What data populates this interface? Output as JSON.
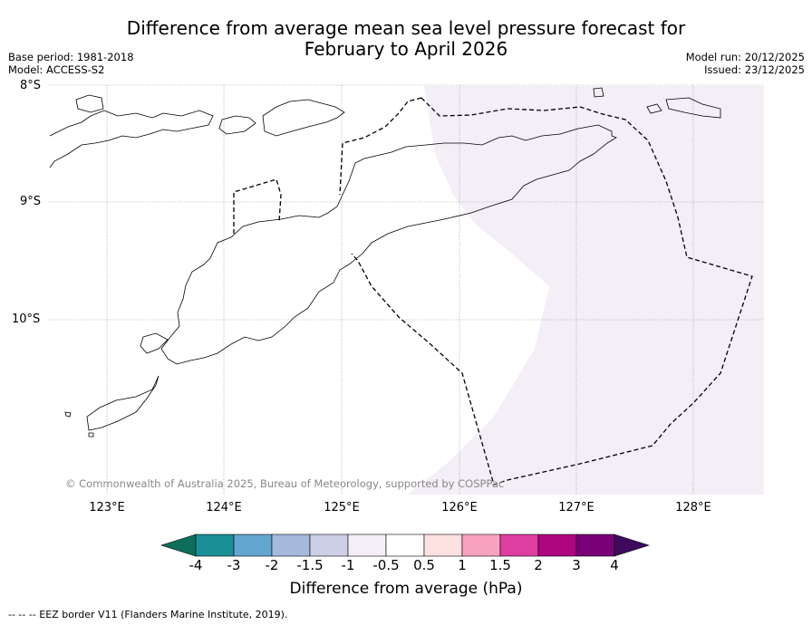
{
  "title_line1": "Difference from average mean sea level pressure forecast for",
  "title_line2": "February to April 2026",
  "base_period": "Base period: 1981-2018",
  "model": "Model: ACCESS-S2",
  "model_run": "Model run: 20/12/2025",
  "issued": "Issued: 23/12/2025",
  "latitudes": [
    "8°S",
    "9°S",
    "10°S"
  ],
  "longitudes": [
    "123°E",
    "124°E",
    "125°E",
    "126°E",
    "127°E",
    "128°E"
  ],
  "copyright": "© Commonwealth of Australia 2025, Bureau of Meteorology, supported by COSPPac",
  "colorbar": {
    "label": "Difference from average (hPa)",
    "ticks": [
      "-4",
      "-3",
      "-2",
      "-1.5",
      "-1",
      "-0.5",
      "0.5",
      "1",
      "1.5",
      "2",
      "3",
      "4"
    ],
    "low_color": "#0e6e5c",
    "high_color": "#3d0a5e",
    "colors": [
      "#1b8f96",
      "#63a6cf",
      "#a4b9db",
      "#cccfe6",
      "#f4eef7",
      "#ffffff",
      "#fde0e0",
      "#f9a2bf",
      "#dd3ea0",
      "#ad067f",
      "#790077"
    ]
  },
  "shading_color": "#f4eef7",
  "footer": "--  --  -- EEZ border V11 (Flanders Marine Institute, 2019)."
}
